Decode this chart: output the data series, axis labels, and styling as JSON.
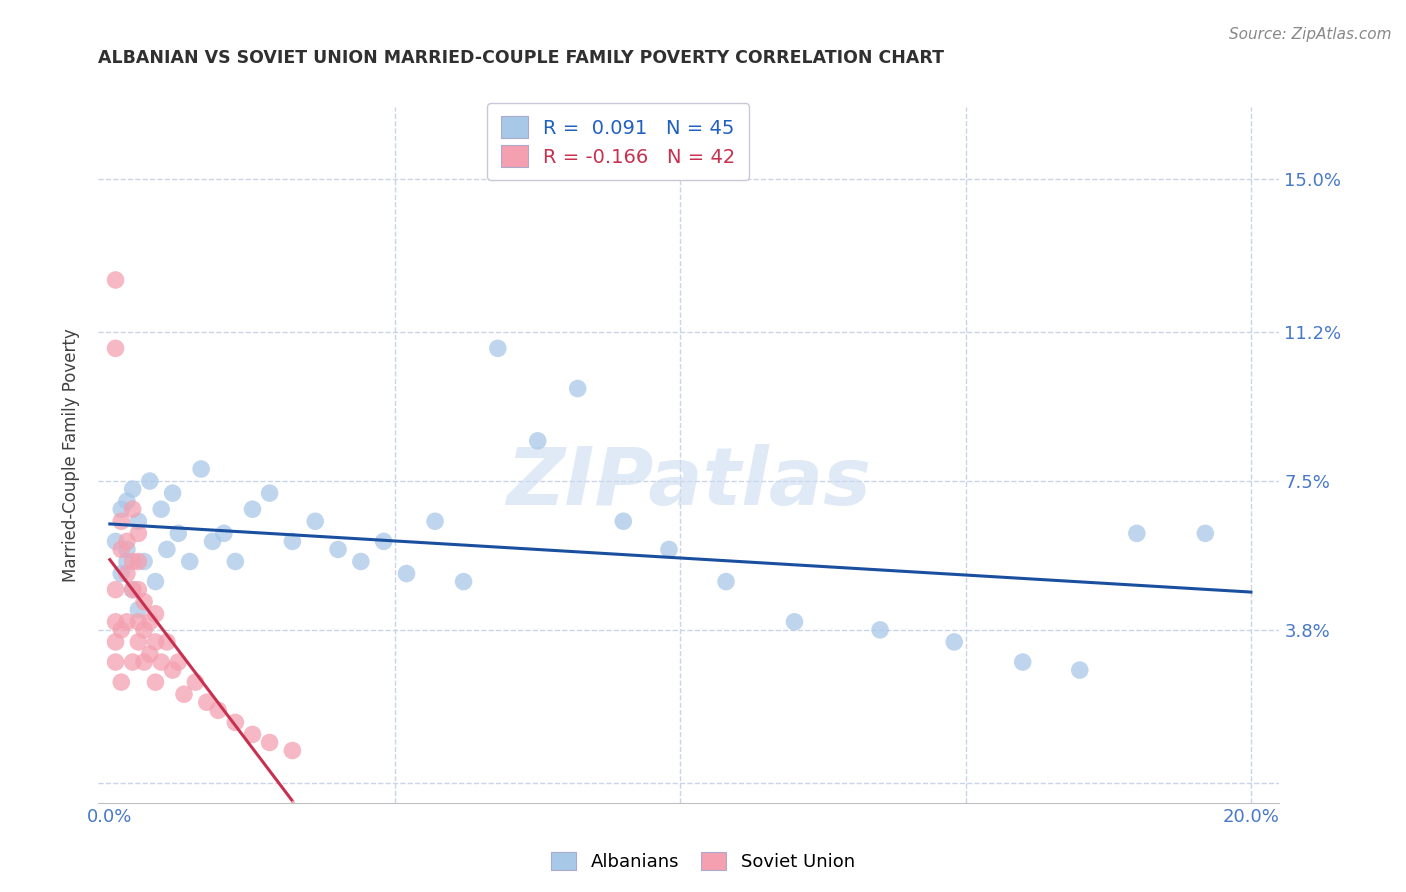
{
  "title": "ALBANIAN VS SOVIET UNION MARRIED-COUPLE FAMILY POVERTY CORRELATION CHART",
  "source": "Source: ZipAtlas.com",
  "ylabel": "Married-Couple Family Poverty",
  "ytick_values": [
    0.0,
    0.038,
    0.075,
    0.112,
    0.15
  ],
  "ytick_labels": [
    "",
    "3.8%",
    "7.5%",
    "11.2%",
    "15.0%"
  ],
  "xtick_values": [
    0.0,
    0.05,
    0.1,
    0.15,
    0.2
  ],
  "xtick_labels": [
    "0.0%",
    "",
    "",
    "",
    "20.0%"
  ],
  "xlim": [
    -0.002,
    0.205
  ],
  "ylim": [
    -0.005,
    0.168
  ],
  "watermark": "ZIPatlas",
  "legend_line1": "R =  0.091   N = 45",
  "legend_line2": "R = -0.166   N = 42",
  "albanian_color": "#a8c8e8",
  "soviet_color": "#f4a0b0",
  "albanian_line_color": "#1a4fa0",
  "soviet_line_color": "#c83050",
  "soviet_dashed_color": "#e8b0c0",
  "grid_color": "#c8d4e8",
  "background_color": "#ffffff",
  "title_color": "#303030",
  "axis_label_color": "#404040",
  "right_tick_color": "#4878c8",
  "bottom_tick_color": "#4878c8",
  "legend_text_color_blue": "#2060c0",
  "legend_text_color_pink": "#c83050",
  "legend_label_color": "#303030",
  "albanian_x": [
    0.001,
    0.002,
    0.002,
    0.003,
    0.003,
    0.003,
    0.004,
    0.004,
    0.005,
    0.005,
    0.006,
    0.007,
    0.008,
    0.009,
    0.01,
    0.011,
    0.012,
    0.014,
    0.016,
    0.018,
    0.02,
    0.022,
    0.025,
    0.028,
    0.032,
    0.036,
    0.04,
    0.044,
    0.048,
    0.052,
    0.057,
    0.062,
    0.068,
    0.075,
    0.082,
    0.09,
    0.098,
    0.108,
    0.12,
    0.135,
    0.148,
    0.16,
    0.17,
    0.18,
    0.192
  ],
  "albanian_y": [
    0.06,
    0.068,
    0.052,
    0.07,
    0.058,
    0.055,
    0.073,
    0.048,
    0.065,
    0.043,
    0.055,
    0.075,
    0.05,
    0.068,
    0.058,
    0.072,
    0.062,
    0.055,
    0.078,
    0.06,
    0.062,
    0.055,
    0.068,
    0.072,
    0.06,
    0.065,
    0.058,
    0.055,
    0.06,
    0.052,
    0.065,
    0.05,
    0.108,
    0.085,
    0.098,
    0.065,
    0.058,
    0.05,
    0.04,
    0.038,
    0.035,
    0.03,
    0.028,
    0.062,
    0.062
  ],
  "soviet_x": [
    0.001,
    0.001,
    0.001,
    0.001,
    0.001,
    0.001,
    0.002,
    0.002,
    0.002,
    0.002,
    0.003,
    0.003,
    0.003,
    0.004,
    0.004,
    0.004,
    0.004,
    0.005,
    0.005,
    0.005,
    0.005,
    0.005,
    0.006,
    0.006,
    0.006,
    0.007,
    0.007,
    0.008,
    0.008,
    0.008,
    0.009,
    0.01,
    0.011,
    0.012,
    0.013,
    0.015,
    0.017,
    0.019,
    0.022,
    0.025,
    0.028,
    0.032
  ],
  "soviet_y": [
    0.125,
    0.108,
    0.048,
    0.04,
    0.035,
    0.03,
    0.065,
    0.058,
    0.038,
    0.025,
    0.06,
    0.052,
    0.04,
    0.068,
    0.055,
    0.048,
    0.03,
    0.062,
    0.055,
    0.048,
    0.04,
    0.035,
    0.045,
    0.038,
    0.03,
    0.04,
    0.032,
    0.042,
    0.035,
    0.025,
    0.03,
    0.035,
    0.028,
    0.03,
    0.022,
    0.025,
    0.02,
    0.018,
    0.015,
    0.012,
    0.01,
    0.008
  ]
}
